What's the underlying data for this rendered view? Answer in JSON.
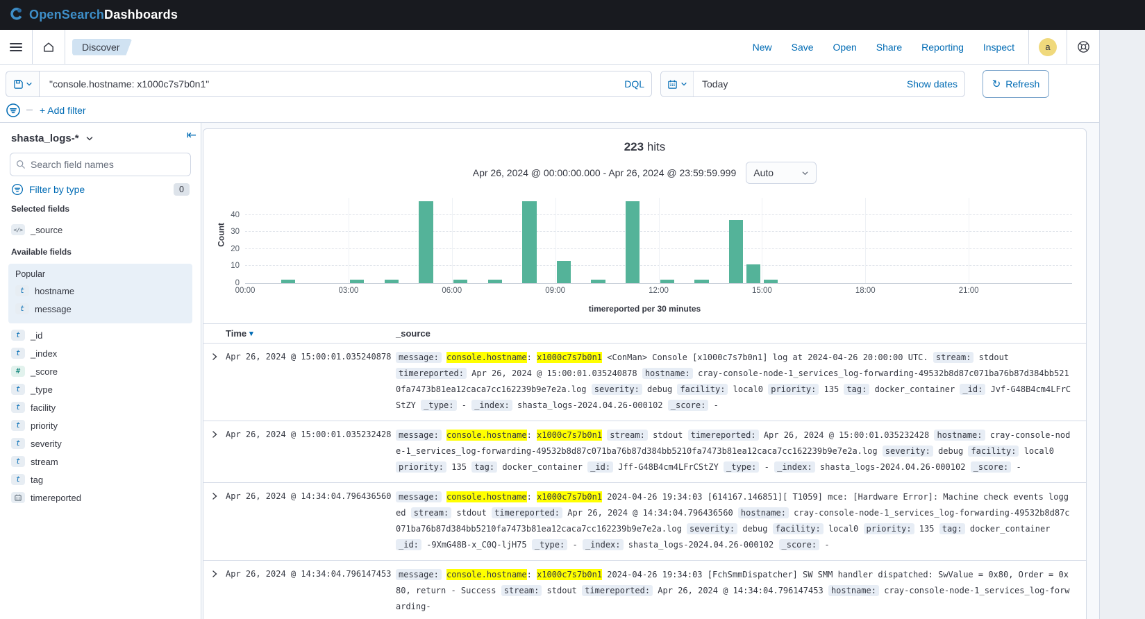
{
  "topbar": {
    "brand_primary": "OpenSearch",
    "brand_secondary": "Dashboards"
  },
  "nav": {
    "breadcrumb": "Discover",
    "actions": [
      "New",
      "Save",
      "Open",
      "Share",
      "Reporting",
      "Inspect"
    ],
    "avatar_initial": "a"
  },
  "query_bar": {
    "query_value": "\"console.hostname: x1000c7s7b0n1\"",
    "language_label": "DQL",
    "date_label": "Today",
    "show_dates_label": "Show dates",
    "refresh_label": "Refresh"
  },
  "filter_bar": {
    "add_filter_label": "+ Add filter"
  },
  "sidebar": {
    "index_pattern": "shasta_logs-*",
    "search_placeholder": "Search field names",
    "filter_by_type_label": "Filter by type",
    "filter_count": "0",
    "selected_heading": "Selected fields",
    "selected_fields": [
      {
        "name": "_source",
        "type": "source"
      }
    ],
    "available_heading": "Available fields",
    "popular_heading": "Popular",
    "popular_fields": [
      {
        "name": "hostname",
        "type": "text"
      },
      {
        "name": "message",
        "type": "text"
      }
    ],
    "available_fields": [
      {
        "name": "_id",
        "type": "text"
      },
      {
        "name": "_index",
        "type": "text"
      },
      {
        "name": "_score",
        "type": "number"
      },
      {
        "name": "_type",
        "type": "text"
      },
      {
        "name": "facility",
        "type": "text"
      },
      {
        "name": "priority",
        "type": "text"
      },
      {
        "name": "severity",
        "type": "text"
      },
      {
        "name": "stream",
        "type": "text"
      },
      {
        "name": "tag",
        "type": "text"
      },
      {
        "name": "timereported",
        "type": "date"
      }
    ]
  },
  "results_header": {
    "hits_count": "223",
    "hits_label": "hits",
    "date_range": "Apr 26, 2024 @ 00:00:00.000 - Apr 26, 2024 @ 23:59:59.999",
    "interval_selected": "Auto"
  },
  "chart_data": {
    "type": "bar",
    "title": "223 hits",
    "xlabel": "timereported per 30 minutes",
    "ylabel": "Count",
    "bucket_minutes": 30,
    "x_start": "00:00",
    "x_end": "24:00",
    "x_ticks": [
      "00:00",
      "03:00",
      "06:00",
      "09:00",
      "12:00",
      "15:00",
      "18:00",
      "21:00"
    ],
    "y_ticks": [
      0,
      10,
      20,
      30,
      40
    ],
    "ylim": [
      0,
      50
    ],
    "bar_color": "#54B399",
    "grid": true,
    "buckets": [
      {
        "time": "01:00",
        "value": 2
      },
      {
        "time": "03:00",
        "value": 2
      },
      {
        "time": "04:00",
        "value": 2
      },
      {
        "time": "05:00",
        "value": 48
      },
      {
        "time": "06:00",
        "value": 2
      },
      {
        "time": "07:00",
        "value": 2
      },
      {
        "time": "08:00",
        "value": 48
      },
      {
        "time": "09:00",
        "value": 13
      },
      {
        "time": "10:00",
        "value": 2
      },
      {
        "time": "11:00",
        "value": 48
      },
      {
        "time": "12:00",
        "value": 2
      },
      {
        "time": "13:00",
        "value": 2
      },
      {
        "time": "14:00",
        "value": 37
      },
      {
        "time": "14:30",
        "value": 11
      },
      {
        "time": "15:00",
        "value": 2
      }
    ]
  },
  "table": {
    "col_time": "Time",
    "col_source": "_source",
    "rows": [
      {
        "time": "Apr 26, 2024 @ 15:00:01.035240878",
        "segments": [
          [
            "b",
            "message:"
          ],
          [
            "m",
            "console.hostname"
          ],
          [
            "g",
            ":"
          ],
          [
            "m",
            "x1000c7s7b0n1"
          ],
          [
            "t",
            "<ConMan> Console [x1000c7s7b0n1] log at 2024-04-26 20:00:00 UTC."
          ],
          [
            "b",
            "stream:"
          ],
          [
            "t",
            "stdout"
          ],
          [
            "b",
            "timereported:"
          ],
          [
            "t",
            "Apr 26, 2024 @ 15:00:01.035240878"
          ],
          [
            "b",
            "hostname:"
          ],
          [
            "t",
            "cray-console-node-1_services_log-forwarding-49532b8d87c071ba76b87d384bb5210fa7473b81ea12caca7cc162239b9e7e2a.log"
          ],
          [
            "b",
            "severity:"
          ],
          [
            "t",
            "debug"
          ],
          [
            "b",
            "facility:"
          ],
          [
            "t",
            "local0"
          ],
          [
            "b",
            "priority:"
          ],
          [
            "t",
            "135"
          ],
          [
            "b",
            "tag:"
          ],
          [
            "t",
            "docker_container"
          ],
          [
            "b",
            "_id:"
          ],
          [
            "t",
            "Jvf-G48B4cm4LFrCStZY"
          ],
          [
            "b",
            "_type:"
          ],
          [
            "t",
            "-"
          ],
          [
            "b",
            "_index:"
          ],
          [
            "t",
            "shasta_logs-2024.04.26-000102"
          ],
          [
            "b",
            "_score:"
          ],
          [
            "t",
            "-"
          ]
        ]
      },
      {
        "time": "Apr 26, 2024 @ 15:00:01.035232428",
        "segments": [
          [
            "b",
            "message:"
          ],
          [
            "m",
            "console.hostname"
          ],
          [
            "g",
            ":"
          ],
          [
            "m",
            "x1000c7s7b0n1"
          ],
          [
            "b",
            "stream:"
          ],
          [
            "t",
            "stdout"
          ],
          [
            "b",
            "timereported:"
          ],
          [
            "t",
            "Apr 26, 2024 @ 15:00:01.035232428"
          ],
          [
            "b",
            "hostname:"
          ],
          [
            "t",
            "cray-console-node-1_services_log-forwarding-49532b8d87c071ba76b87d384bb5210fa7473b81ea12caca7cc162239b9e7e2a.log"
          ],
          [
            "b",
            "severity:"
          ],
          [
            "t",
            "debug"
          ],
          [
            "b",
            "facility:"
          ],
          [
            "t",
            "local0"
          ],
          [
            "b",
            "priority:"
          ],
          [
            "t",
            "135"
          ],
          [
            "b",
            "tag:"
          ],
          [
            "t",
            "docker_container"
          ],
          [
            "b",
            "_id:"
          ],
          [
            "t",
            "Jff-G48B4cm4LFrCStZY"
          ],
          [
            "b",
            "_type:"
          ],
          [
            "t",
            "-"
          ],
          [
            "b",
            "_index:"
          ],
          [
            "t",
            "shasta_logs-2024.04.26-000102"
          ],
          [
            "b",
            "_score:"
          ],
          [
            "t",
            "-"
          ]
        ]
      },
      {
        "time": "Apr 26, 2024 @ 14:34:04.796436560",
        "segments": [
          [
            "b",
            "message:"
          ],
          [
            "m",
            "console.hostname"
          ],
          [
            "g",
            ":"
          ],
          [
            "m",
            "x1000c7s7b0n1"
          ],
          [
            "t",
            "2024-04-26 19:34:03 [614167.146851][ T1059] mce: [Hardware Error]: Machine check events logged"
          ],
          [
            "b",
            "stream:"
          ],
          [
            "t",
            "stdout"
          ],
          [
            "b",
            "timereported:"
          ],
          [
            "t",
            "Apr 26, 2024 @ 14:34:04.796436560"
          ],
          [
            "b",
            "hostname:"
          ],
          [
            "t",
            "cray-console-node-1_services_log-forwarding-49532b8d87c071ba76b87d384bb5210fa7473b81ea12caca7cc162239b9e7e2a.log"
          ],
          [
            "b",
            "severity:"
          ],
          [
            "t",
            "debug"
          ],
          [
            "b",
            "facility:"
          ],
          [
            "t",
            "local0"
          ],
          [
            "b",
            "priority:"
          ],
          [
            "t",
            "135"
          ],
          [
            "b",
            "tag:"
          ],
          [
            "t",
            "docker_container"
          ],
          [
            "b",
            "_id:"
          ],
          [
            "t",
            "-9XmG48B-x_C0Q-ljH75"
          ],
          [
            "b",
            "_type:"
          ],
          [
            "t",
            "-"
          ],
          [
            "b",
            "_index:"
          ],
          [
            "t",
            "shasta_logs-2024.04.26-000102"
          ],
          [
            "b",
            "_score:"
          ],
          [
            "t",
            "-"
          ]
        ]
      },
      {
        "time": "Apr 26, 2024 @ 14:34:04.796147453",
        "segments": [
          [
            "b",
            "message:"
          ],
          [
            "m",
            "console.hostname"
          ],
          [
            "g",
            ":"
          ],
          [
            "m",
            "x1000c7s7b0n1"
          ],
          [
            "t",
            "2024-04-26 19:34:03 [FchSmmDispatcher] SW SMM handler dispatched: SwValue = 0x80, Order = 0x80, return - Success"
          ],
          [
            "b",
            "stream:"
          ],
          [
            "t",
            "stdout"
          ],
          [
            "b",
            "timereported:"
          ],
          [
            "t",
            "Apr 26, 2024 @ 14:34:04.796147453"
          ],
          [
            "b",
            "hostname:"
          ],
          [
            "t",
            "cray-console-node-1_services_log-forwarding-"
          ]
        ]
      }
    ]
  }
}
